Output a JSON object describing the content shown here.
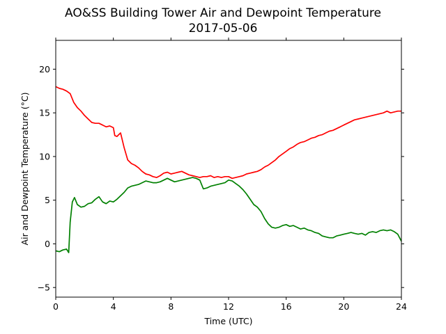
{
  "chart_data": {
    "type": "line",
    "title": "AO&SS Building Tower Air and Dewpoint Temperature",
    "subtitle": "2017-05-06",
    "xlabel": "Time (UTC)",
    "ylabel": "Air and Dewpoint Temperature (°C)",
    "xlim": [
      0,
      24
    ],
    "ylim": [
      -6.1,
      23.3
    ],
    "xticks": [
      0,
      4,
      8,
      12,
      16,
      20,
      24
    ],
    "yticks": [
      -5,
      0,
      5,
      10,
      15,
      20
    ],
    "grid": false,
    "legend": "none",
    "series": [
      {
        "color": "#ff0000",
        "x": [
          0,
          0.25,
          0.5,
          0.75,
          1.0,
          1.25,
          1.5,
          1.75,
          2.0,
          2.25,
          2.5,
          2.75,
          3.0,
          3.25,
          3.5,
          3.75,
          4.0,
          4.1,
          4.25,
          4.5,
          4.75,
          5.0,
          5.25,
          5.5,
          5.75,
          6.0,
          6.25,
          6.5,
          6.75,
          7.0,
          7.25,
          7.5,
          7.75,
          8.0,
          8.25,
          8.5,
          8.75,
          9.0,
          9.25,
          9.5,
          9.75,
          10.0,
          10.25,
          10.5,
          10.75,
          11.0,
          11.25,
          11.5,
          11.75,
          12.0,
          12.25,
          12.5,
          12.75,
          13.0,
          13.25,
          13.5,
          13.75,
          14.0,
          14.25,
          14.5,
          14.75,
          15.0,
          15.25,
          15.5,
          15.75,
          16.0,
          16.25,
          16.5,
          16.75,
          17.0,
          17.25,
          17.5,
          17.75,
          18.0,
          18.25,
          18.5,
          18.75,
          19.0,
          19.25,
          19.5,
          19.75,
          20.0,
          20.25,
          20.5,
          20.75,
          21.0,
          21.25,
          21.5,
          21.75,
          22.0,
          22.25,
          22.5,
          22.75,
          23.0,
          23.25,
          23.5,
          23.75,
          24.0
        ],
        "values": [
          18.0,
          17.8,
          17.7,
          17.5,
          17.2,
          16.2,
          15.6,
          15.2,
          14.7,
          14.3,
          13.9,
          13.8,
          13.8,
          13.6,
          13.4,
          13.5,
          13.3,
          12.4,
          12.3,
          12.7,
          11.0,
          9.6,
          9.2,
          9.0,
          8.7,
          8.3,
          8.0,
          7.9,
          7.7,
          7.6,
          7.8,
          8.1,
          8.2,
          8.0,
          8.1,
          8.2,
          8.3,
          8.1,
          7.9,
          7.8,
          7.7,
          7.6,
          7.7,
          7.7,
          7.8,
          7.6,
          7.7,
          7.6,
          7.7,
          7.7,
          7.5,
          7.6,
          7.7,
          7.8,
          8.0,
          8.1,
          8.2,
          8.3,
          8.5,
          8.8,
          9.0,
          9.3,
          9.6,
          10.0,
          10.3,
          10.6,
          10.9,
          11.1,
          11.4,
          11.6,
          11.7,
          11.9,
          12.1,
          12.2,
          12.4,
          12.5,
          12.7,
          12.9,
          13.0,
          13.2,
          13.4,
          13.6,
          13.8,
          14.0,
          14.2,
          14.3,
          14.4,
          14.5,
          14.6,
          14.7,
          14.8,
          14.9,
          15.0,
          15.2,
          15.0,
          15.1,
          15.2,
          15.2
        ]
      },
      {
        "color": "#008000",
        "x": [
          0,
          0.25,
          0.5,
          0.75,
          0.9,
          1.0,
          1.15,
          1.3,
          1.5,
          1.75,
          2.0,
          2.25,
          2.5,
          2.75,
          3.0,
          3.25,
          3.5,
          3.75,
          4.0,
          4.25,
          4.5,
          4.75,
          5.0,
          5.25,
          5.5,
          5.75,
          6.0,
          6.25,
          6.5,
          6.75,
          7.0,
          7.25,
          7.5,
          7.75,
          8.0,
          8.25,
          8.5,
          8.75,
          9.0,
          9.25,
          9.5,
          9.75,
          10.0,
          10.25,
          10.5,
          10.75,
          11.0,
          11.25,
          11.5,
          11.75,
          12.0,
          12.25,
          12.5,
          12.75,
          13.0,
          13.25,
          13.5,
          13.75,
          14.0,
          14.25,
          14.5,
          14.75,
          15.0,
          15.25,
          15.5,
          15.75,
          16.0,
          16.25,
          16.5,
          16.75,
          17.0,
          17.25,
          17.5,
          17.75,
          18.0,
          18.25,
          18.5,
          18.75,
          19.0,
          19.25,
          19.5,
          19.75,
          20.0,
          20.25,
          20.5,
          20.75,
          21.0,
          21.25,
          21.5,
          21.75,
          22.0,
          22.25,
          22.5,
          22.75,
          23.0,
          23.25,
          23.5,
          23.75,
          24.0
        ],
        "values": [
          -0.8,
          -0.9,
          -0.7,
          -0.6,
          -1.0,
          2.5,
          4.8,
          5.3,
          4.5,
          4.2,
          4.3,
          4.6,
          4.7,
          5.1,
          5.4,
          4.8,
          4.6,
          4.9,
          4.8,
          5.1,
          5.5,
          5.9,
          6.4,
          6.6,
          6.7,
          6.8,
          7.0,
          7.2,
          7.1,
          7.0,
          7.0,
          7.1,
          7.3,
          7.5,
          7.3,
          7.1,
          7.2,
          7.3,
          7.4,
          7.5,
          7.6,
          7.5,
          7.3,
          6.3,
          6.4,
          6.6,
          6.7,
          6.8,
          6.9,
          7.0,
          7.3,
          7.2,
          6.9,
          6.6,
          6.2,
          5.7,
          5.1,
          4.5,
          4.2,
          3.7,
          2.9,
          2.3,
          1.9,
          1.8,
          1.9,
          2.1,
          2.2,
          2.0,
          2.1,
          1.9,
          1.7,
          1.8,
          1.6,
          1.5,
          1.3,
          1.2,
          0.9,
          0.8,
          0.7,
          0.7,
          0.9,
          1.0,
          1.1,
          1.2,
          1.3,
          1.2,
          1.1,
          1.2,
          1.0,
          1.3,
          1.4,
          1.3,
          1.5,
          1.6,
          1.5,
          1.6,
          1.4,
          1.1,
          0.3
        ]
      }
    ]
  }
}
